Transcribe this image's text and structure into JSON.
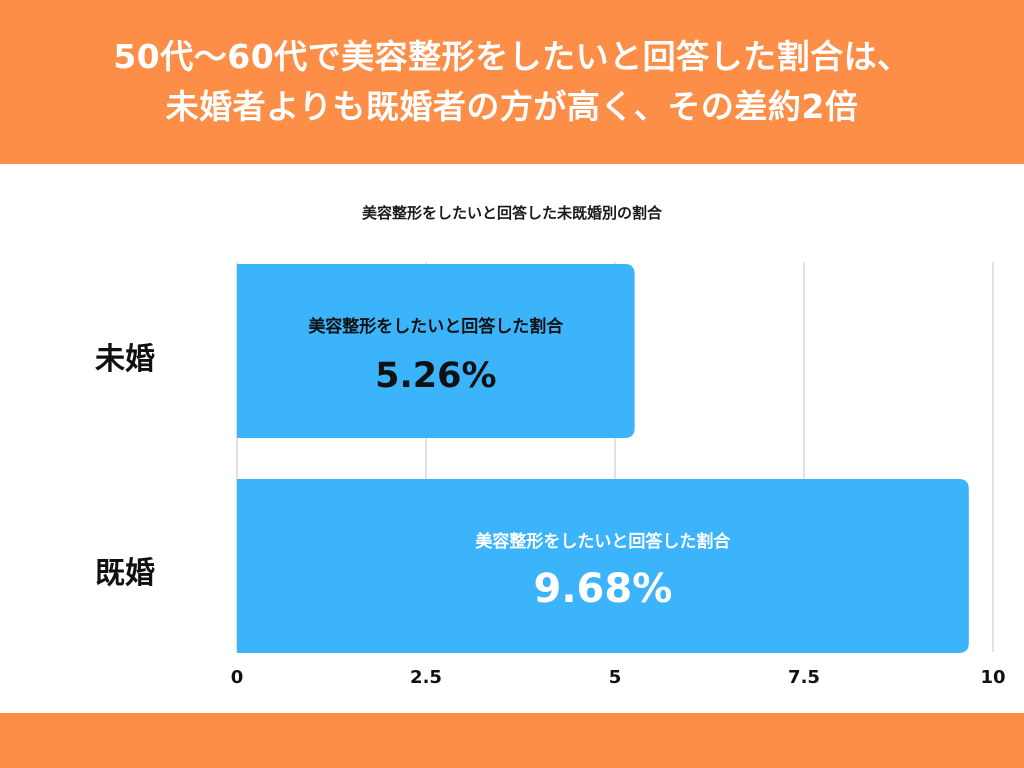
{
  "headline": {
    "line1": "50代〜60代で美容整形をしたいと回答した割合は、",
    "line2": "未婚者よりも既婚者の方が高く、その差約2倍"
  },
  "colors": {
    "band": "#fd8e48",
    "bar": "#3bb4fc",
    "grid": "#d9d9d9"
  },
  "chart_data": {
    "type": "bar",
    "orientation": "horizontal",
    "title": "美容整形をしたいと回答した未既婚別の割合",
    "categories": [
      "未婚",
      "既婚"
    ],
    "series": [
      {
        "name": "美容整形をしたいと回答した割合",
        "values": [
          5.26,
          9.68
        ]
      }
    ],
    "value_labels": [
      "5.26%",
      "9.68%"
    ],
    "xlim": [
      0,
      10
    ],
    "xticks": [
      "0",
      "2.5",
      "5",
      "7.5",
      "10"
    ],
    "grid": true
  }
}
